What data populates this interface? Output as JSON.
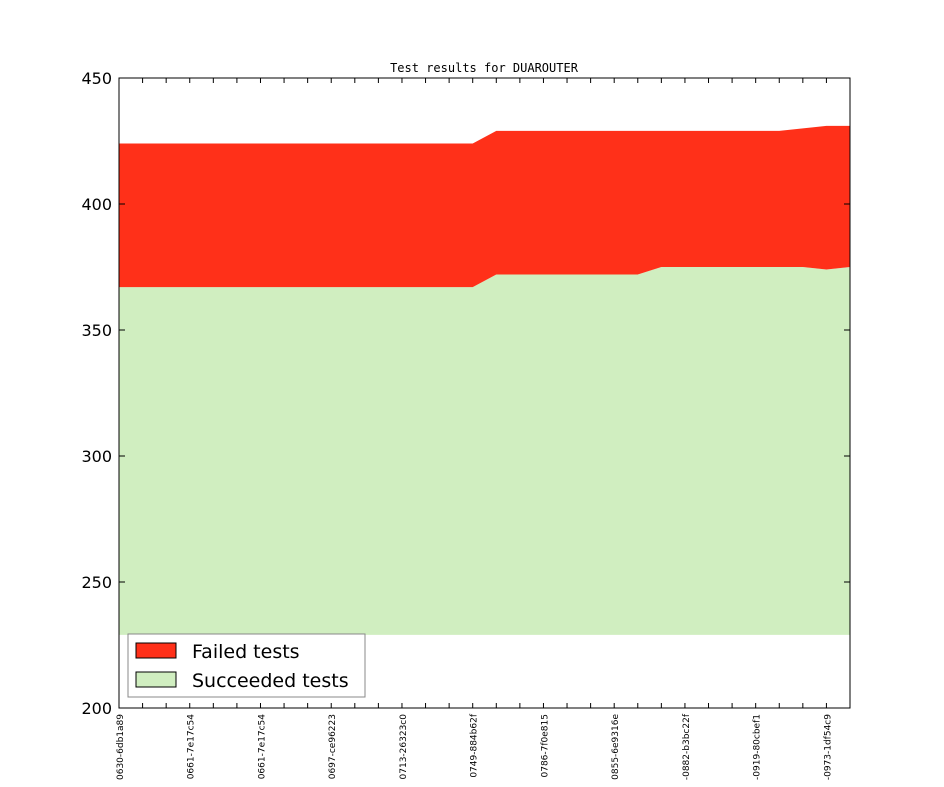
{
  "chart_data": {
    "type": "area",
    "title": "Test results for DUAROUTER",
    "xlabel": "",
    "ylabel": "",
    "ylim": [
      200,
      450
    ],
    "yticks": [
      200,
      250,
      300,
      350,
      400,
      450
    ],
    "baseline": 229,
    "x_tick_labels": [
      "0630-6db1a89",
      "0661-7e17c54",
      "0661-7e17c54",
      "0697-ce96223",
      "0713-26323c0",
      "0749-884b62f",
      "0786-7f0e815",
      "0855-6e9316e",
      "-0882-b3bc22f",
      "-0919-80cbef1",
      "-0973-1df54c9"
    ],
    "series": [
      {
        "name": "Succeeded tests",
        "color": "#d0eec0",
        "values": [
          367,
          367,
          367,
          367,
          367,
          367,
          367,
          367,
          367,
          367,
          367,
          367,
          367,
          367,
          367,
          367,
          372,
          372,
          372,
          372,
          372,
          372,
          372,
          375,
          375,
          375,
          375,
          375,
          375,
          375,
          374,
          375
        ]
      },
      {
        "name": "Failed tests",
        "color": "#ff3019",
        "values": [
          57,
          57,
          57,
          57,
          57,
          57,
          57,
          57,
          57,
          57,
          57,
          57,
          57,
          57,
          57,
          57,
          57,
          57,
          57,
          57,
          57,
          57,
          57,
          54,
          54,
          54,
          54,
          54,
          54,
          55,
          57,
          56
        ]
      }
    ],
    "legend": {
      "position": "bottom-left"
    },
    "grid": false
  }
}
